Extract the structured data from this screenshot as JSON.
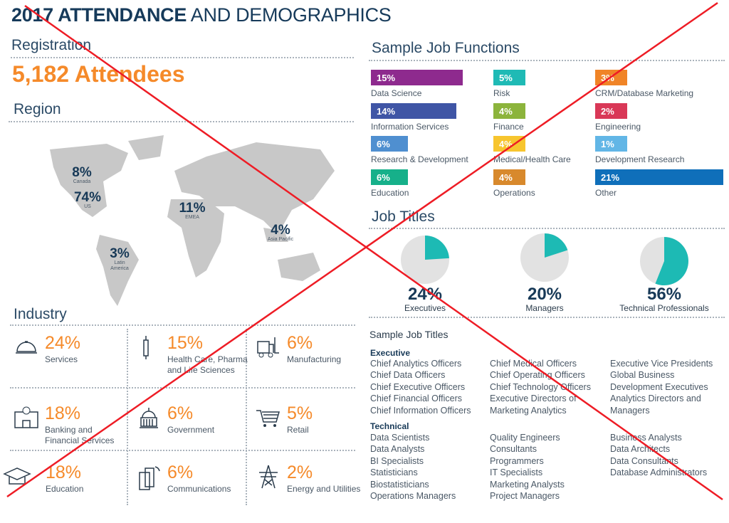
{
  "title": {
    "bold": "2017 ATTENDANCE",
    "light": "AND DEMOGRAPHICS"
  },
  "registration": {
    "heading": "Registration",
    "value": "5,182 Attendees"
  },
  "region": {
    "heading": "Region",
    "items": [
      {
        "pct": "8%",
        "label": "Canada"
      },
      {
        "pct": "74%",
        "label": "US"
      },
      {
        "pct": "11%",
        "label": "EMEA"
      },
      {
        "pct": "4%",
        "label": "Asia Pacific"
      },
      {
        "pct": "3%",
        "label": "Latin America"
      }
    ]
  },
  "job_functions": {
    "heading": "Sample Job Functions",
    "items": [
      {
        "pct": "15%",
        "label": "Data Science",
        "value": 15,
        "color": "#8e2a8e"
      },
      {
        "pct": "14%",
        "label": "Information Services",
        "value": 14,
        "color": "#3f55a5"
      },
      {
        "pct": "6%",
        "label": "Research & Development",
        "value": 6,
        "color": "#4f8fd0"
      },
      {
        "pct": "6%",
        "label": "Education",
        "value": 6,
        "color": "#16b08a"
      },
      {
        "pct": "5%",
        "label": "Risk",
        "value": 5,
        "color": "#1fbab5"
      },
      {
        "pct": "4%",
        "label": "Finance",
        "value": 4,
        "color": "#8cb43c"
      },
      {
        "pct": "4%",
        "label": "Medical/Health Care",
        "value": 4,
        "color": "#f7c52e"
      },
      {
        "pct": "4%",
        "label": "Operations",
        "value": 4,
        "color": "#d8892c"
      },
      {
        "pct": "3%",
        "label": "CRM/Database Marketing",
        "value": 3,
        "color": "#f08427"
      },
      {
        "pct": "2%",
        "label": "Engineering",
        "value": 2,
        "color": "#d93857"
      },
      {
        "pct": "1%",
        "label": "Development Research",
        "value": 1,
        "color": "#62b6e6"
      },
      {
        "pct": "21%",
        "label": "Other",
        "value": 21,
        "color": "#0f6fba"
      }
    ]
  },
  "job_titles": {
    "heading": "Job Titles"
  },
  "chart_data": {
    "type": "pie",
    "title": "Job Titles",
    "series": [
      {
        "name": "Executives",
        "value": 24,
        "pct": "24%"
      },
      {
        "name": "Managers",
        "value": 20,
        "pct": "20%"
      },
      {
        "name": "Technical Professionals",
        "value": 56,
        "pct": "56%"
      }
    ],
    "colors": {
      "fill": "#1dbab4",
      "rest": "#e2e2e2"
    }
  },
  "industry": {
    "heading": "Industry",
    "items": [
      {
        "pct": "24%",
        "label": "Services",
        "icon": "service-bell-icon"
      },
      {
        "pct": "15%",
        "label": "Health Care, Pharma and Life Sciences",
        "icon": "syringe-icon"
      },
      {
        "pct": "6%",
        "label": "Manufacturing",
        "icon": "forklift-icon"
      },
      {
        "pct": "18%",
        "label": "Banking and Financial Services",
        "icon": "bank-icon"
      },
      {
        "pct": "6%",
        "label": "Government",
        "icon": "capitol-icon"
      },
      {
        "pct": "5%",
        "label": "Retail",
        "icon": "cart-icon"
      },
      {
        "pct": "18%",
        "label": "Education",
        "icon": "graduation-cap-icon"
      },
      {
        "pct": "6%",
        "label": "Communications",
        "icon": "phone-icon"
      },
      {
        "pct": "2%",
        "label": "Energy and Utilities",
        "icon": "power-tower-icon"
      }
    ]
  },
  "sample_titles": {
    "heading": "Sample Job Titles",
    "executive": {
      "label": "Executive",
      "cols": [
        [
          "Chief Analytics Officers",
          "Chief Data Officers",
          "Chief Executive Officers",
          "Chief Financial Officers",
          "Chief Information Officers"
        ],
        [
          "Chief Medical Officers",
          "Chief Operating Officers",
          "Chief Technology Officers",
          "Executive Directors of",
          "Marketing Analytics"
        ],
        [
          "Executive Vice Presidents",
          "Global Business",
          "Development Executives",
          "Analytics Directors and",
          "Managers"
        ]
      ]
    },
    "technical": {
      "label": "Technical",
      "cols": [
        [
          "Data Scientists",
          "Data Analysts",
          "BI Specialists",
          "Statisticians",
          "Biostatisticians",
          "Operations Managers"
        ],
        [
          "Quality Engineers",
          "Consultants",
          "Programmers",
          "IT Specialists",
          "Marketing Analysts",
          "Project Managers"
        ],
        [
          "Business Analysts",
          "Data Architects",
          "Data Consultants",
          "Database Administrators"
        ]
      ]
    }
  }
}
